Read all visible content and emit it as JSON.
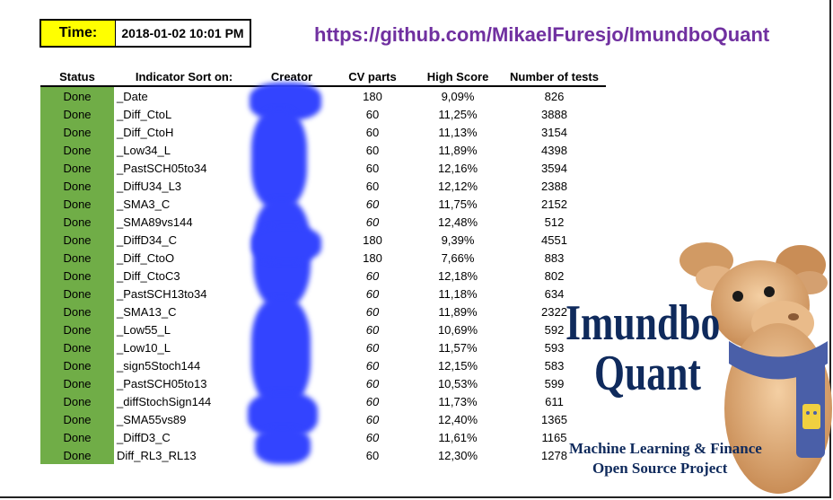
{
  "time": {
    "label": "Time:",
    "value": "2018-01-02 10:01 PM"
  },
  "link": "https://github.com/MikaelFuresjo/ImundboQuant",
  "table": {
    "headers": [
      "Status",
      "Indicator Sort on:",
      "Creator",
      "CV parts",
      "High Score",
      "Number of tests"
    ],
    "rows": [
      {
        "status": "Done",
        "indicator": "_Date",
        "cv": "180",
        "cv_italic": false,
        "high": "9,09%",
        "tests": "826"
      },
      {
        "status": "Done",
        "indicator": "_Diff_CtoL",
        "cv": "60",
        "cv_italic": false,
        "high": "11,25%",
        "tests": "3888"
      },
      {
        "status": "Done",
        "indicator": "_Diff_CtoH",
        "cv": "60",
        "cv_italic": false,
        "high": "11,13%",
        "tests": "3154"
      },
      {
        "status": "Done",
        "indicator": "_Low34_L",
        "cv": "60",
        "cv_italic": false,
        "high": "11,89%",
        "tests": "4398"
      },
      {
        "status": "Done",
        "indicator": "_PastSCH05to34",
        "cv": "60",
        "cv_italic": false,
        "high": "12,16%",
        "tests": "3594"
      },
      {
        "status": "Done",
        "indicator": "_DiffU34_L3",
        "cv": "60",
        "cv_italic": false,
        "high": "12,12%",
        "tests": "2388"
      },
      {
        "status": "Done",
        "indicator": "_SMA3_C",
        "cv": "60",
        "cv_italic": true,
        "high": "11,75%",
        "tests": "2152"
      },
      {
        "status": "Done",
        "indicator": "_SMA89vs144",
        "cv": "60",
        "cv_italic": true,
        "high": "12,48%",
        "tests": "512"
      },
      {
        "status": "Done",
        "indicator": "_DiffD34_C",
        "cv": "180",
        "cv_italic": false,
        "high": "9,39%",
        "tests": "4551"
      },
      {
        "status": "Done",
        "indicator": "_Diff_CtoO",
        "cv": "180",
        "cv_italic": false,
        "high": "7,66%",
        "tests": "883"
      },
      {
        "status": "Done",
        "indicator": "_Diff_CtoC3",
        "cv": "60",
        "cv_italic": true,
        "high": "12,18%",
        "tests": "802"
      },
      {
        "status": "Done",
        "indicator": "_PastSCH13to34",
        "cv": "60",
        "cv_italic": true,
        "high": "11,18%",
        "tests": "634"
      },
      {
        "status": "Done",
        "indicator": "_SMA13_C",
        "cv": "60",
        "cv_italic": true,
        "high": "11,89%",
        "tests": "2322"
      },
      {
        "status": "Done",
        "indicator": "_Low55_L",
        "cv": "60",
        "cv_italic": true,
        "high": "10,69%",
        "tests": "592"
      },
      {
        "status": "Done",
        "indicator": "_Low10_L",
        "cv": "60",
        "cv_italic": true,
        "high": "11,57%",
        "tests": "593"
      },
      {
        "status": "Done",
        "indicator": "_sign5Stoch144",
        "cv": "60",
        "cv_italic": true,
        "high": "12,15%",
        "tests": "583"
      },
      {
        "status": "Done",
        "indicator": "_PastSCH05to13",
        "cv": "60",
        "cv_italic": true,
        "high": "10,53%",
        "tests": "599"
      },
      {
        "status": "Done",
        "indicator": "_diffStochSign144",
        "cv": "60",
        "cv_italic": true,
        "high": "11,73%",
        "tests": "611"
      },
      {
        "status": "Done",
        "indicator": "_SMA55vs89",
        "cv": "60",
        "cv_italic": true,
        "high": "12,40%",
        "tests": "1365"
      },
      {
        "status": "Done",
        "indicator": "_DiffD3_C",
        "cv": "60",
        "cv_italic": true,
        "high": "11,61%",
        "tests": "1165"
      },
      {
        "status": "Done",
        "indicator": "Diff_RL3_RL13",
        "cv": "60",
        "cv_italic": false,
        "high": "12,30%",
        "tests": "1278"
      }
    ]
  },
  "logo": {
    "title_line1": "Imundbo",
    "title_line2": "Quant",
    "sub_line1": "Machine Learning & Finance",
    "sub_line2": "Open Source Project"
  },
  "colors": {
    "status_green": "#70ad47",
    "time_label_bg": "#ffff00",
    "link_purple": "#7030a0",
    "logo_navy": "#0f2a5c",
    "redaction_blue": "#3344ff"
  }
}
